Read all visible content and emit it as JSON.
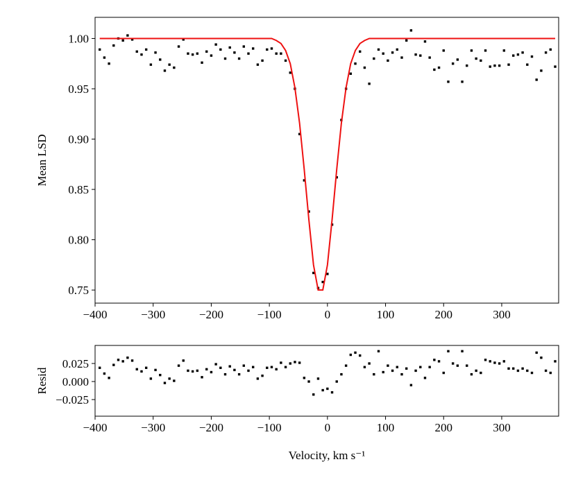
{
  "chart_data": [
    {
      "type": "scatter",
      "ylabel": "Mean LSD",
      "x": [
        -392,
        -384,
        -376,
        -368,
        -360,
        -352,
        -344,
        -336,
        -328,
        -320,
        -312,
        -304,
        -296,
        -288,
        -280,
        -272,
        -264,
        -256,
        -248,
        -240,
        -232,
        -224,
        -216,
        -208,
        -200,
        -192,
        -184,
        -176,
        -168,
        -160,
        -152,
        -144,
        -136,
        -128,
        -120,
        -112,
        -104,
        -96,
        -88,
        -80,
        -72,
        -64,
        -56,
        -48,
        -40,
        -32,
        -24,
        -16,
        -8,
        0,
        8,
        16,
        24,
        32,
        40,
        48,
        56,
        64,
        72,
        80,
        88,
        96,
        104,
        112,
        120,
        128,
        136,
        144,
        152,
        160,
        168,
        176,
        184,
        192,
        200,
        208,
        216,
        224,
        232,
        240,
        248,
        256,
        264,
        272,
        280,
        288,
        296,
        304,
        312,
        320,
        328,
        336,
        344,
        352,
        360,
        368,
        376,
        384,
        392
      ],
      "series": [
        {
          "mode": "markers",
          "color": "#000000",
          "values": [
            0.989,
            0.981,
            0.975,
            0.993,
            1.0,
            0.998,
            1.003,
            0.999,
            0.987,
            0.984,
            0.989,
            0.974,
            0.986,
            0.979,
            0.968,
            0.974,
            0.971,
            0.992,
            0.999,
            0.985,
            0.984,
            0.985,
            0.976,
            0.987,
            0.983,
            0.994,
            0.989,
            0.98,
            0.991,
            0.986,
            0.98,
            0.992,
            0.985,
            0.99,
            0.974,
            0.978,
            0.989,
            0.99,
            0.985,
            0.985,
            0.978,
            0.966,
            0.95,
            0.905,
            0.859,
            0.828,
            0.767,
            0.752,
            0.758,
            0.766,
            0.815,
            0.862,
            0.919,
            0.95,
            0.965,
            0.975,
            0.987,
            0.971,
            0.955,
            0.98,
            0.989,
            0.985,
            0.978,
            0.986,
            0.989,
            0.981,
            0.998,
            1.008,
            0.984,
            0.983,
            0.997,
            0.981,
            0.969,
            0.971,
            0.988,
            0.957,
            0.975,
            0.979,
            0.957,
            0.973,
            0.988,
            0.98,
            0.978,
            0.988,
            0.972,
            0.973,
            0.973,
            0.988,
            0.974,
            0.983,
            0.984,
            0.986,
            0.974,
            0.982,
            0.959,
            0.968,
            0.986,
            0.989,
            0.972
          ]
        },
        {
          "mode": "line",
          "color": "#ee1111",
          "values": [
            1,
            1,
            1,
            1,
            1,
            1,
            1,
            1,
            1,
            1,
            1,
            1,
            1,
            1,
            1,
            1,
            1,
            1,
            1,
            1,
            1,
            1,
            1,
            1,
            1,
            1,
            1,
            1,
            1,
            1,
            1,
            1,
            1,
            1,
            1,
            1,
            1,
            1,
            0.998,
            0.995,
            0.988,
            0.975,
            0.951,
            0.916,
            0.87,
            0.82,
            0.775,
            0.75,
            0.75,
            0.775,
            0.82,
            0.87,
            0.916,
            0.951,
            0.975,
            0.988,
            0.995,
            0.998,
            1,
            1,
            1,
            1,
            1,
            1,
            1,
            1,
            1,
            1,
            1,
            1,
            1,
            1,
            1,
            1,
            1,
            1,
            1,
            1,
            1,
            1,
            1,
            1,
            1,
            1,
            1,
            1,
            1,
            1,
            1,
            1,
            1,
            1,
            1,
            1,
            1,
            1,
            1,
            1,
            1
          ]
        }
      ],
      "xlim": [
        -400,
        398
      ],
      "ylim": [
        0.737,
        1.021
      ],
      "xticks": [
        {
          "value": -400,
          "label": "−400"
        },
        {
          "value": -300,
          "label": "−300"
        },
        {
          "value": -200,
          "label": "−200"
        },
        {
          "value": -100,
          "label": "−100"
        },
        0,
        100,
        200,
        300
      ],
      "yticks": [
        {
          "value": 0.75,
          "label": "0.75"
        },
        {
          "value": 0.8,
          "label": "0.80"
        },
        {
          "value": 0.85,
          "label": "0.85"
        },
        {
          "value": 0.9,
          "label": "0.90"
        },
        {
          "value": 0.95,
          "label": "0.95"
        },
        {
          "value": 1,
          "label": "1.00"
        }
      ]
    },
    {
      "type": "scatter",
      "ylabel": "Resid",
      "xlabel": "Velocity, km s⁻¹",
      "x": [
        -392,
        -384,
        -376,
        -368,
        -360,
        -352,
        -344,
        -336,
        -328,
        -320,
        -312,
        -304,
        -296,
        -288,
        -280,
        -272,
        -264,
        -256,
        -248,
        -240,
        -232,
        -224,
        -216,
        -208,
        -200,
        -192,
        -184,
        -176,
        -168,
        -160,
        -152,
        -144,
        -136,
        -128,
        -120,
        -112,
        -104,
        -96,
        -88,
        -80,
        -72,
        -64,
        -56,
        -48,
        -40,
        -32,
        -24,
        -16,
        -8,
        0,
        8,
        16,
        24,
        32,
        40,
        48,
        56,
        64,
        72,
        80,
        88,
        96,
        104,
        112,
        120,
        128,
        136,
        144,
        152,
        160,
        168,
        176,
        184,
        192,
        200,
        208,
        216,
        224,
        232,
        240,
        248,
        256,
        264,
        272,
        280,
        288,
        296,
        304,
        312,
        320,
        328,
        336,
        344,
        352,
        360,
        368,
        376,
        384,
        392
      ],
      "series": [
        {
          "mode": "markers",
          "color": "#000000",
          "values": [
            0.019,
            0.011,
            0.005,
            0.023,
            0.03,
            0.028,
            0.033,
            0.029,
            0.017,
            0.014,
            0.019,
            0.004,
            0.016,
            0.009,
            -0.002,
            0.004,
            0.001,
            0.022,
            0.029,
            0.015,
            0.014,
            0.015,
            0.006,
            0.017,
            0.013,
            0.024,
            0.019,
            0.01,
            0.021,
            0.016,
            0.01,
            0.022,
            0.015,
            0.02,
            0.004,
            0.008,
            0.019,
            0.02,
            0.017,
            0.026,
            0.02,
            0.025,
            0.027,
            0.026,
            0.005,
            0.0,
            -0.018,
            0.004,
            -0.012,
            -0.01,
            -0.015,
            0.0,
            0.01,
            0.022,
            0.037,
            0.04,
            0.036,
            0.02,
            0.025,
            0.01,
            0.042,
            0.013,
            0.022,
            0.015,
            0.02,
            0.01,
            0.018,
            -0.005,
            0.015,
            0.02,
            0.005,
            0.02,
            0.03,
            0.028,
            0.012,
            0.042,
            0.025,
            0.022,
            0.042,
            0.022,
            0.01,
            0.015,
            0.012,
            0.03,
            0.028,
            0.026,
            0.025,
            0.028,
            0.018,
            0.018,
            0.015,
            0.018,
            0.015,
            0.012,
            0.04,
            0.033,
            0.015,
            0.012,
            0.028
          ]
        }
      ],
      "xlim": [
        -400,
        398
      ],
      "ylim": [
        -0.048,
        0.05
      ],
      "xticks": [
        {
          "value": -400,
          "label": "−400"
        },
        {
          "value": -300,
          "label": "−300"
        },
        {
          "value": -200,
          "label": "−200"
        },
        {
          "value": -100,
          "label": "−100"
        },
        0,
        100,
        200,
        300
      ],
      "yticks": [
        {
          "value": -0.025,
          "label": "−0.025"
        },
        {
          "value": 0,
          "label": "0.000"
        },
        {
          "value": 0.025,
          "label": "0.025"
        }
      ]
    }
  ]
}
